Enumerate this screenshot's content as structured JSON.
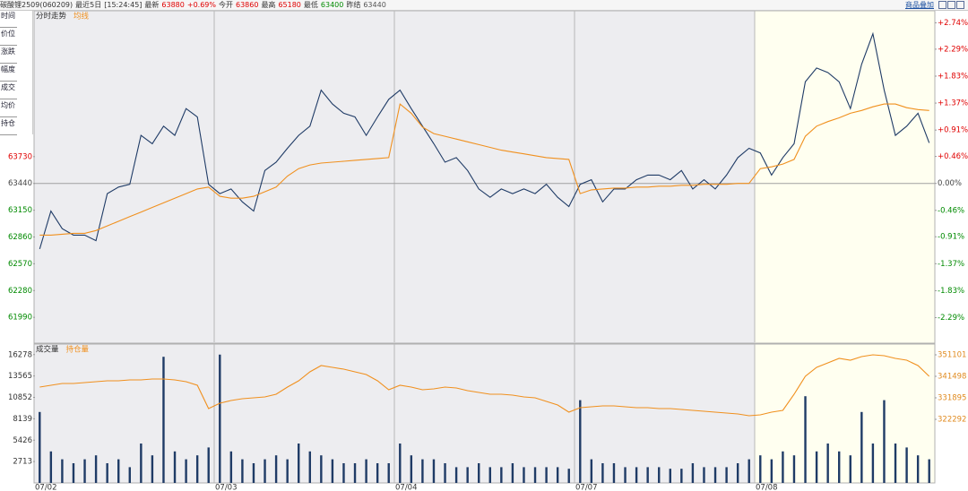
{
  "header": {
    "items": [
      {
        "text": "碳酸锂2509(060209)",
        "color": "#333333"
      },
      {
        "text": "最近5日",
        "color": "#333333"
      },
      {
        "text": "[15:24:45]",
        "color": "#333333"
      },
      {
        "text": "最新",
        "color": "#333333"
      },
      {
        "text": "63880",
        "color": "#e00000"
      },
      {
        "text": "+0.69%",
        "color": "#e00000"
      },
      {
        "text": "今开",
        "color": "#333333"
      },
      {
        "text": "63860",
        "color": "#e00000"
      },
      {
        "text": "最高",
        "color": "#333333"
      },
      {
        "text": "65180",
        "color": "#e00000"
      },
      {
        "text": "最低",
        "color": "#333333"
      },
      {
        "text": "63400",
        "color": "#008a00"
      },
      {
        "text": "昨结",
        "color": "#333333"
      },
      {
        "text": "63440",
        "color": "#555555"
      }
    ]
  },
  "toolbar": {
    "overlay": "商品叠加"
  },
  "sidebar": [
    "时间",
    "价位",
    "涨跌",
    "幅度",
    "成交",
    "均价",
    "持仓"
  ],
  "chart_data": [
    {
      "type": "line",
      "ylim": [
        61720,
        65300
      ],
      "yticks": [
        63730,
        63440,
        63150,
        62860,
        62570,
        62280,
        61990
      ],
      "y2lim": [
        -2.71,
        2.93
      ],
      "y2ticks": [
        {
          "value": 2.74,
          "label": "+2.74%"
        },
        {
          "value": 2.29,
          "label": "+2.29%"
        },
        {
          "value": 1.83,
          "label": "+1.83%"
        },
        {
          "value": 1.37,
          "label": "+1.37%"
        },
        {
          "value": 0.91,
          "label": "+0.91%"
        },
        {
          "value": 0.46,
          "label": "+0.46%"
        },
        {
          "value": 0,
          "label": "0.00%"
        },
        {
          "value": -0.46,
          "label": "-0.46%"
        },
        {
          "value": -0.91,
          "label": "-0.91%"
        },
        {
          "value": -1.37,
          "label": "-1.37%"
        },
        {
          "value": -1.83,
          "label": "-1.83%"
        },
        {
          "value": -2.29,
          "label": "-2.29%"
        }
      ],
      "series": [
        {
          "name": "分时走势",
          "color": "#1f3b66",
          "values": [
            62730,
            63140,
            62950,
            62880,
            62880,
            62820,
            63330,
            63400,
            63430,
            63960,
            63870,
            64060,
            63960,
            64250,
            64160,
            63430,
            63330,
            63380,
            63240,
            63140,
            63580,
            63670,
            63820,
            63960,
            64060,
            64450,
            64300,
            64200,
            64160,
            63960,
            64160,
            64350,
            64450,
            64250,
            64060,
            63870,
            63670,
            63720,
            63580,
            63380,
            63290,
            63380,
            63330,
            63380,
            63330,
            63430,
            63290,
            63190,
            63430,
            63480,
            63240,
            63380,
            63380,
            63480,
            63530,
            63530,
            63480,
            63580,
            63380,
            63480,
            63380,
            63530,
            63720,
            63820,
            63770,
            63530,
            63720,
            63870,
            64540,
            64690,
            64640,
            64540,
            64250,
            64730,
            65060,
            64450,
            63960,
            64060,
            64200,
            63880
          ]
        },
        {
          "name": "均线",
          "color": "#f0901e",
          "values": [
            62880,
            62880,
            62890,
            62900,
            62900,
            62930,
            62980,
            63030,
            63080,
            63130,
            63180,
            63230,
            63280,
            63330,
            63380,
            63400,
            63300,
            63280,
            63280,
            63300,
            63350,
            63400,
            63520,
            63600,
            63640,
            63660,
            63670,
            63680,
            63690,
            63700,
            63710,
            63720,
            64300,
            64200,
            64050,
            63980,
            63950,
            63920,
            63890,
            63860,
            63830,
            63800,
            63780,
            63760,
            63740,
            63720,
            63710,
            63700,
            63330,
            63370,
            63380,
            63390,
            63390,
            63400,
            63400,
            63410,
            63410,
            63420,
            63420,
            63430,
            63430,
            63430,
            63440,
            63440,
            63600,
            63620,
            63650,
            63700,
            63950,
            64060,
            64110,
            64150,
            64200,
            64230,
            64270,
            64300,
            64300,
            64260,
            64240,
            64230
          ]
        }
      ]
    },
    {
      "type": "bar",
      "categories": [
        "07/02",
        null,
        null,
        null,
        null,
        null,
        null,
        null,
        null,
        null,
        null,
        null,
        null,
        null,
        null,
        null,
        "07/03",
        null,
        null,
        null,
        null,
        null,
        null,
        null,
        null,
        null,
        null,
        null,
        null,
        null,
        null,
        null,
        "07/04",
        null,
        null,
        null,
        null,
        null,
        null,
        null,
        null,
        null,
        null,
        null,
        null,
        null,
        null,
        null,
        "07/07",
        null,
        null,
        null,
        null,
        null,
        null,
        null,
        null,
        null,
        null,
        null,
        null,
        null,
        null,
        null,
        "07/08",
        null,
        null,
        null,
        null,
        null,
        null,
        null,
        null,
        null,
        null,
        null,
        null,
        null,
        null,
        null
      ],
      "ylim": [
        0,
        17500
      ],
      "yticks": [
        16278,
        13565,
        10852,
        8139,
        5426,
        2713
      ],
      "y2lim": [
        293900,
        355500
      ],
      "y2ticks": [
        351101,
        341498,
        331895,
        322292
      ],
      "series": [
        {
          "name": "成交量",
          "color": "#1f3b66",
          "values": [
            9000,
            4000,
            3000,
            2500,
            3000,
            3500,
            2500,
            3000,
            2000,
            5000,
            3500,
            16000,
            4000,
            3000,
            3500,
            4500,
            16278,
            4000,
            3000,
            2500,
            3000,
            3500,
            3000,
            5000,
            4000,
            3500,
            3000,
            2500,
            2500,
            3000,
            2500,
            2500,
            5000,
            3500,
            3000,
            3000,
            2500,
            2000,
            2000,
            2500,
            2000,
            2000,
            2500,
            2000,
            2000,
            2000,
            2000,
            1800,
            10500,
            3000,
            2500,
            2500,
            2000,
            2000,
            2000,
            2000,
            1800,
            1800,
            2500,
            2000,
            2000,
            2000,
            2500,
            3000,
            3500,
            3000,
            4000,
            3500,
            11000,
            4000,
            5000,
            4000,
            3500,
            9000,
            5000,
            10500,
            5000,
            4500,
            3500,
            3000
          ]
        },
        {
          "name": "持仓量",
          "color": "#f0901e",
          "type": "line",
          "axis": "y2",
          "values": [
            336690,
            337490,
            338290,
            338290,
            338690,
            339090,
            339490,
            339490,
            339890,
            339890,
            340290,
            340290,
            339890,
            339090,
            337490,
            327090,
            329490,
            330690,
            331490,
            331890,
            332290,
            333490,
            336690,
            339490,
            343490,
            346290,
            345490,
            344690,
            343490,
            342290,
            339490,
            335490,
            337490,
            336690,
            335490,
            335890,
            336690,
            336290,
            335090,
            334290,
            333490,
            333490,
            333090,
            332290,
            331890,
            330290,
            328690,
            325490,
            327490,
            327890,
            328290,
            328290,
            327890,
            327490,
            327490,
            327090,
            327090,
            326690,
            326290,
            325890,
            325490,
            325090,
            324690,
            323890,
            324290,
            325490,
            326290,
            333490,
            341490,
            345490,
            347490,
            349490,
            348690,
            350290,
            351090,
            350690,
            349490,
            348690,
            346290,
            341490
          ]
        }
      ]
    }
  ]
}
